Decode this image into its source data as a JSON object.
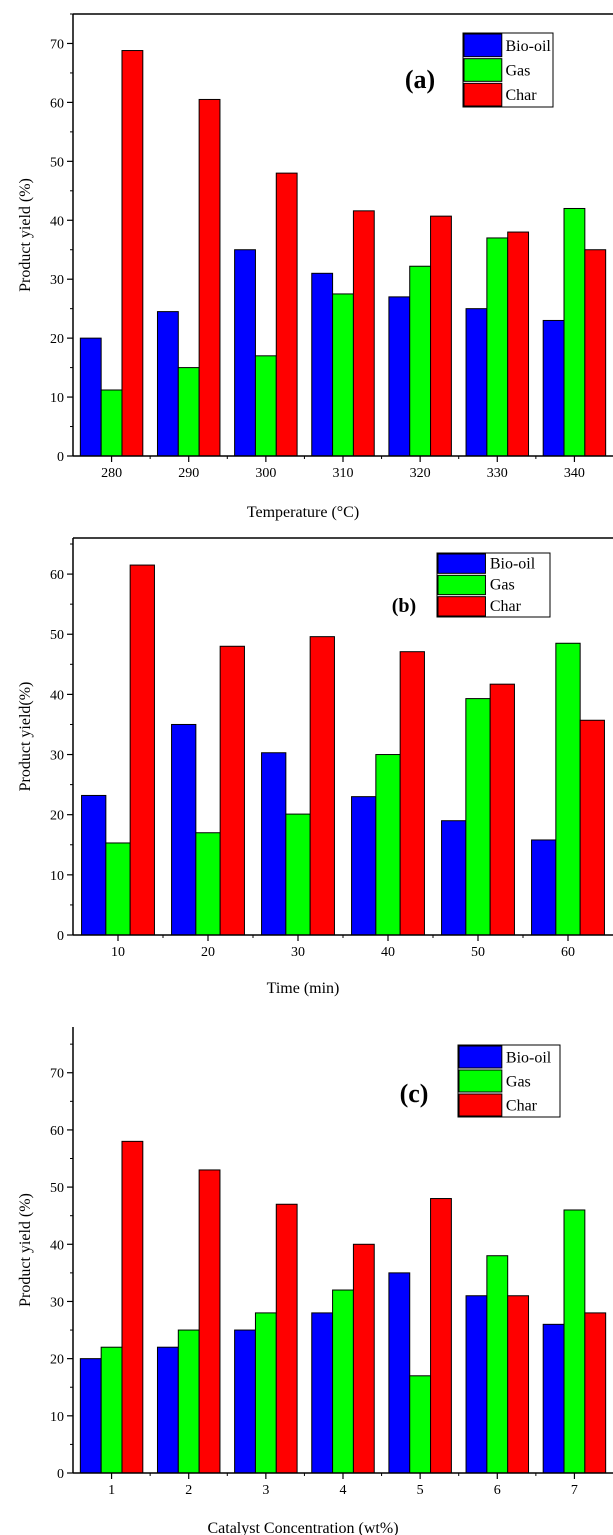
{
  "colors": {
    "Bio-oil": "#0000ff",
    "Gas": "#00ff00",
    "Char": "#ff0000",
    "axis": "#000000"
  },
  "chart_data": [
    {
      "panel_label": "(a)",
      "type": "bar",
      "xlabel": "Temperature (°C)",
      "ylabel": "Product yield (%)",
      "categories": [
        "280",
        "290",
        "300",
        "310",
        "320",
        "330",
        "340"
      ],
      "ylim": [
        0,
        75
      ],
      "yticks": [
        "0",
        "10",
        "20",
        "30",
        "40",
        "50",
        "60",
        "70"
      ],
      "legend_position": "top-right",
      "series": [
        {
          "name": "Bio-oil",
          "values": [
            20,
            24.5,
            35,
            31,
            27,
            25,
            23
          ]
        },
        {
          "name": "Gas",
          "values": [
            11.2,
            15,
            17,
            27.5,
            32.2,
            37,
            42
          ]
        },
        {
          "name": "Char",
          "values": [
            68.8,
            60.5,
            48,
            41.6,
            40.7,
            38,
            35
          ]
        }
      ]
    },
    {
      "panel_label": "(b)",
      "type": "bar",
      "xlabel": "Time (min)",
      "ylabel": "Product yield(%)",
      "categories": [
        "10",
        "20",
        "30",
        "40",
        "50",
        "60"
      ],
      "ylim": [
        0,
        66
      ],
      "yticks": [
        "0",
        "10",
        "20",
        "30",
        "40",
        "50",
        "60"
      ],
      "legend_position": "top-right",
      "series": [
        {
          "name": "Bio-oil",
          "values": [
            23.2,
            35,
            30.3,
            23,
            19,
            15.8
          ]
        },
        {
          "name": "Gas",
          "values": [
            15.3,
            17,
            20.1,
            30,
            39.3,
            48.5
          ]
        },
        {
          "name": "Char",
          "values": [
            61.5,
            48,
            49.6,
            47.1,
            41.7,
            35.7
          ]
        }
      ]
    },
    {
      "panel_label": "(c)",
      "type": "bar",
      "xlabel": "Catalyst Concentration (wt%)",
      "ylabel": "Product yield (%)",
      "categories": [
        "1",
        "2",
        "3",
        "4",
        "5",
        "6",
        "7"
      ],
      "ylim": [
        0,
        78
      ],
      "yticks": [
        "0",
        "10",
        "20",
        "30",
        "40",
        "50",
        "60",
        "70"
      ],
      "legend_position": "top-right",
      "series": [
        {
          "name": "Bio-oil",
          "values": [
            20,
            22,
            25,
            28,
            35,
            31,
            26
          ]
        },
        {
          "name": "Gas",
          "values": [
            22,
            25,
            28,
            32,
            17,
            38,
            46
          ]
        },
        {
          "name": "Char",
          "values": [
            58,
            53,
            47,
            40,
            48,
            31,
            28
          ]
        }
      ]
    }
  ]
}
